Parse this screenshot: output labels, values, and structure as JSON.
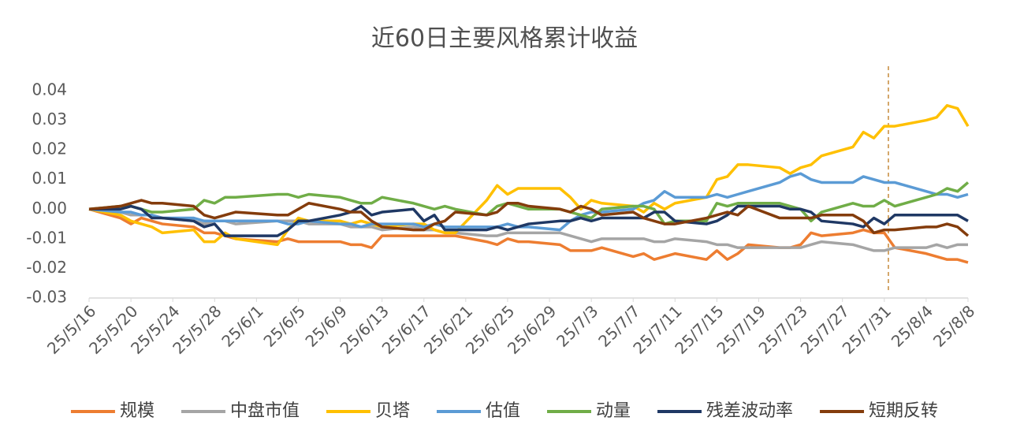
{
  "chart_data": {
    "type": "line",
    "title": "近60日主要风格累计收益",
    "x": [
      "25/5/16",
      "25/5/19",
      "25/5/20",
      "25/5/21",
      "25/5/22",
      "25/5/23",
      "25/5/26",
      "25/5/27",
      "25/5/28",
      "25/5/29",
      "25/5/30",
      "25/6/3",
      "25/6/4",
      "25/6/5",
      "25/6/6",
      "25/6/9",
      "25/6/10",
      "25/6/11",
      "25/6/12",
      "25/6/13",
      "25/6/16",
      "25/6/17",
      "25/6/18",
      "25/6/19",
      "25/6/20",
      "25/6/23",
      "25/6/24",
      "25/6/25",
      "25/6/26",
      "25/6/27",
      "25/6/30",
      "25/7/1",
      "25/7/2",
      "25/7/3",
      "25/7/4",
      "25/7/7",
      "25/7/8",
      "25/7/9",
      "25/7/10",
      "25/7/11",
      "25/7/14",
      "25/7/15",
      "25/7/16",
      "25/7/17",
      "25/7/18",
      "25/7/21",
      "25/7/22",
      "25/7/23",
      "25/7/24",
      "25/7/25",
      "25/7/28",
      "25/7/29",
      "25/7/30",
      "25/7/31",
      "25/8/1",
      "25/8/4",
      "25/8/5",
      "25/8/6",
      "25/8/7",
      "25/8/8"
    ],
    "xlim": [
      "25/5/16",
      "25/8/8"
    ],
    "xticks": [
      "25/5/16",
      "25/5/20",
      "25/5/24",
      "25/5/28",
      "25/6/1",
      "25/6/5",
      "25/6/9",
      "25/6/13",
      "25/6/17",
      "25/6/21",
      "25/6/25",
      "25/6/29",
      "25/7/3",
      "25/7/7",
      "25/7/11",
      "25/7/15",
      "25/7/19",
      "25/7/23",
      "25/7/27",
      "25/7/31",
      "25/8/4",
      "25/8/8"
    ],
    "ylim": [
      -0.03,
      0.04
    ],
    "yticks": [
      0.04,
      0.03,
      0.02,
      0.01,
      {
        "value": 0,
        "label": "0.00"
      },
      -0.01,
      -0.02,
      -0.03
    ],
    "grid": false,
    "legend": "bottom",
    "series": [
      {
        "name": "规模",
        "color": "#ed7d31",
        "values": [
          0,
          -0.003,
          -0.005,
          -0.003,
          -0.004,
          -0.005,
          -0.006,
          -0.008,
          -0.008,
          -0.009,
          -0.01,
          -0.011,
          -0.01,
          -0.011,
          -0.011,
          -0.011,
          -0.012,
          -0.012,
          -0.013,
          -0.009,
          -0.009,
          -0.009,
          -0.009,
          -0.009,
          -0.009,
          -0.011,
          -0.012,
          -0.01,
          -0.011,
          -0.011,
          -0.012,
          -0.014,
          -0.014,
          -0.014,
          -0.013,
          -0.016,
          -0.015,
          -0.017,
          -0.016,
          -0.015,
          -0.017,
          -0.014,
          -0.017,
          -0.015,
          -0.012,
          -0.013,
          -0.013,
          -0.012,
          -0.008,
          -0.009,
          -0.008,
          -0.007,
          -0.008,
          -0.008,
          -0.013,
          -0.015,
          -0.016,
          -0.017,
          -0.017,
          -0.018
        ]
      },
      {
        "name": "中盘市值",
        "color": "#a5a5a5",
        "values": [
          0,
          -0.001,
          -0.002,
          -0.002,
          -0.002,
          -0.003,
          -0.004,
          -0.005,
          -0.004,
          -0.004,
          -0.005,
          -0.004,
          -0.004,
          -0.004,
          -0.005,
          -0.005,
          -0.006,
          -0.006,
          -0.006,
          -0.007,
          -0.006,
          -0.007,
          -0.007,
          -0.008,
          -0.008,
          -0.009,
          -0.009,
          -0.008,
          -0.008,
          -0.008,
          -0.008,
          -0.009,
          -0.01,
          -0.011,
          -0.01,
          -0.01,
          -0.01,
          -0.011,
          -0.011,
          -0.01,
          -0.011,
          -0.012,
          -0.012,
          -0.013,
          -0.013,
          -0.013,
          -0.013,
          -0.013,
          -0.012,
          -0.011,
          -0.012,
          -0.013,
          -0.014,
          -0.014,
          -0.013,
          -0.013,
          -0.012,
          -0.013,
          -0.012,
          -0.012
        ]
      },
      {
        "name": "贝塔",
        "color": "#ffc000",
        "values": [
          0,
          -0.002,
          -0.004,
          -0.005,
          -0.006,
          -0.008,
          -0.007,
          -0.011,
          -0.011,
          -0.008,
          -0.01,
          -0.012,
          -0.007,
          -0.003,
          -0.004,
          -0.004,
          -0.005,
          -0.004,
          -0.005,
          -0.006,
          -0.005,
          -0.005,
          -0.007,
          -0.008,
          -0.008,
          0.003,
          0.008,
          0.005,
          0.007,
          0.007,
          0.007,
          0.004,
          0.0,
          0.003,
          0.002,
          0.001,
          -0.001,
          0.002,
          0.0,
          0.002,
          0.004,
          0.01,
          0.011,
          0.015,
          0.015,
          0.014,
          0.012,
          0.014,
          0.015,
          0.018,
          0.021,
          0.026,
          0.024,
          0.028,
          0.028,
          0.03,
          0.031,
          0.035,
          0.034,
          0.028
        ]
      },
      {
        "name": "估值",
        "color": "#5b9bd5",
        "values": [
          0,
          -0.001,
          -0.001,
          -0.002,
          -0.002,
          -0.003,
          -0.003,
          -0.004,
          -0.004,
          -0.004,
          -0.004,
          -0.004,
          -0.005,
          -0.005,
          -0.004,
          -0.005,
          -0.005,
          -0.006,
          -0.005,
          -0.005,
          -0.005,
          -0.006,
          -0.005,
          -0.006,
          -0.006,
          -0.006,
          -0.006,
          -0.005,
          -0.006,
          -0.006,
          -0.007,
          -0.004,
          -0.002,
          -0.001,
          -0.001,
          0.0,
          0.002,
          0.003,
          0.006,
          0.004,
          0.004,
          0.005,
          0.004,
          0.005,
          0.006,
          0.009,
          0.011,
          0.012,
          0.01,
          0.009,
          0.009,
          0.011,
          0.01,
          0.009,
          0.009,
          0.006,
          0.005,
          0.005,
          0.004,
          0.005
        ]
      },
      {
        "name": "动量",
        "color": "#70ad47",
        "values": [
          0,
          0.001,
          0.001,
          0.0,
          -0.001,
          -0.001,
          0.0,
          0.003,
          0.002,
          0.004,
          0.004,
          0.005,
          0.005,
          0.004,
          0.005,
          0.004,
          0.003,
          0.002,
          0.002,
          0.004,
          0.002,
          0.001,
          0.0,
          0.001,
          0.0,
          -0.002,
          0.001,
          0.002,
          0.001,
          0.0,
          0.0,
          -0.001,
          -0.002,
          -0.003,
          0.0,
          0.001,
          0.001,
          0.0,
          -0.005,
          -0.004,
          -0.004,
          0.002,
          0.001,
          0.002,
          0.002,
          0.002,
          0.001,
          0.0,
          -0.004,
          -0.001,
          0.002,
          0.001,
          0.001,
          0.003,
          0.001,
          0.004,
          0.005,
          0.007,
          0.006,
          0.009
        ]
      },
      {
        "name": "残差波动率",
        "color": "#1f3864",
        "values": [
          0,
          0.0,
          0.001,
          0.0,
          -0.003,
          -0.003,
          -0.004,
          -0.006,
          -0.005,
          -0.009,
          -0.009,
          -0.009,
          -0.007,
          -0.004,
          -0.004,
          -0.002,
          -0.001,
          0.001,
          -0.002,
          -0.001,
          0.0,
          -0.004,
          -0.002,
          -0.007,
          -0.007,
          -0.007,
          -0.006,
          -0.007,
          -0.006,
          -0.005,
          -0.004,
          -0.004,
          -0.003,
          -0.004,
          -0.003,
          -0.003,
          -0.003,
          -0.001,
          -0.001,
          -0.004,
          -0.005,
          -0.004,
          -0.002,
          0.001,
          0.001,
          0.001,
          0.0,
          0.0,
          -0.001,
          -0.004,
          -0.005,
          -0.006,
          -0.003,
          -0.005,
          -0.002,
          -0.002,
          -0.002,
          -0.002,
          -0.002,
          -0.004
        ]
      },
      {
        "name": "短期反转",
        "color": "#843c0c",
        "values": [
          0,
          0.001,
          0.002,
          0.003,
          0.002,
          0.002,
          0.001,
          -0.002,
          -0.003,
          -0.002,
          -0.001,
          -0.002,
          -0.002,
          0.0,
          0.002,
          0.0,
          -0.001,
          -0.001,
          -0.004,
          -0.006,
          -0.007,
          -0.007,
          -0.005,
          -0.004,
          -0.001,
          -0.002,
          -0.001,
          0.002,
          0.002,
          0.001,
          0.0,
          -0.001,
          0.001,
          0.0,
          -0.002,
          -0.001,
          -0.003,
          -0.004,
          -0.005,
          -0.005,
          -0.003,
          -0.002,
          -0.001,
          -0.002,
          0.001,
          -0.003,
          -0.003,
          -0.003,
          -0.003,
          -0.002,
          -0.002,
          -0.004,
          -0.008,
          -0.007,
          -0.007,
          -0.006,
          -0.006,
          -0.005,
          -0.006,
          -0.009
        ]
      }
    ]
  }
}
